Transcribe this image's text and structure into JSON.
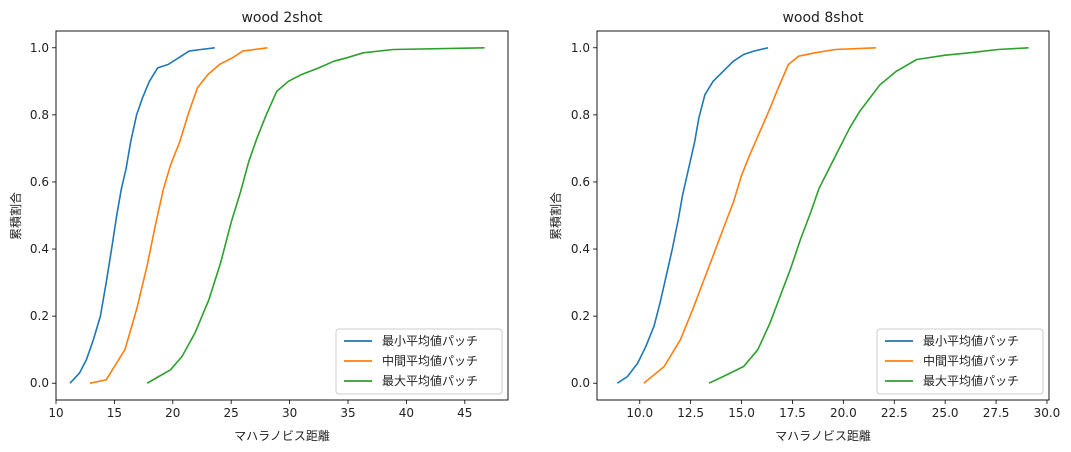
{
  "chart_data": [
    {
      "type": "line",
      "title": "wood 2shot",
      "xlabel": "マハラノビス距離",
      "ylabel": "累積割合",
      "xlim": [
        10.0,
        48.7
      ],
      "ylim": [
        -0.05,
        1.05
      ],
      "xticks": [
        10,
        15,
        20,
        25,
        30,
        35,
        40,
        45
      ],
      "xtick_labels": [
        "10",
        "15",
        "20",
        "25",
        "30",
        "35",
        "40",
        "45"
      ],
      "yticks": [
        0.0,
        0.2,
        0.4,
        0.6,
        0.8,
        1.0
      ],
      "ytick_labels": [
        "0.0",
        "0.2",
        "0.4",
        "0.6",
        "0.8",
        "1.0"
      ],
      "grid": false,
      "legend_position": "bottom-right",
      "series": [
        {
          "name": "最小平均値パッチ",
          "color": "#1f77b4",
          "x": [
            11.2,
            12.0,
            12.6,
            13.2,
            13.8,
            14.3,
            14.8,
            15.2,
            15.6,
            16.0,
            16.4,
            16.9,
            17.4,
            18.0,
            18.7,
            19.6,
            20.5,
            21.4,
            22.4,
            23.6
          ],
          "y": [
            0.0,
            0.03,
            0.07,
            0.13,
            0.2,
            0.3,
            0.41,
            0.5,
            0.58,
            0.64,
            0.72,
            0.8,
            0.85,
            0.9,
            0.94,
            0.95,
            0.97,
            0.99,
            0.995,
            1.0
          ]
        },
        {
          "name": "中間平均値パッチ",
          "color": "#ff7f0e",
          "x": [
            12.9,
            14.3,
            15.0,
            15.9,
            16.9,
            17.8,
            18.5,
            19.2,
            19.8,
            20.6,
            21.3,
            22.1,
            23.0,
            24.0,
            25.1,
            26.0,
            28.1
          ],
          "y": [
            0.0,
            0.01,
            0.05,
            0.1,
            0.22,
            0.35,
            0.47,
            0.58,
            0.65,
            0.72,
            0.8,
            0.88,
            0.92,
            0.95,
            0.97,
            0.99,
            1.0
          ]
        },
        {
          "name": "最大平均値パッチ",
          "color": "#2ca02c",
          "x": [
            17.8,
            18.8,
            19.8,
            20.8,
            21.9,
            23.1,
            24.1,
            25.0,
            25.8,
            26.5,
            27.2,
            28.0,
            28.9,
            29.9,
            31.0,
            32.5,
            33.8,
            34.9,
            36.3,
            38.9,
            46.7
          ],
          "y": [
            0.0,
            0.02,
            0.04,
            0.08,
            0.15,
            0.25,
            0.36,
            0.48,
            0.57,
            0.66,
            0.73,
            0.8,
            0.87,
            0.9,
            0.92,
            0.94,
            0.96,
            0.97,
            0.985,
            0.995,
            1.0
          ]
        }
      ]
    },
    {
      "type": "line",
      "title": "wood 8shot",
      "xlabel": "マハラノビス距離",
      "ylabel": "累積割合",
      "xlim": [
        7.9,
        30.1
      ],
      "ylim": [
        -0.05,
        1.05
      ],
      "xticks": [
        10.0,
        12.5,
        15.0,
        17.5,
        20.0,
        22.5,
        25.0,
        27.5,
        30.0
      ],
      "xtick_labels": [
        "10.0",
        "12.5",
        "15.0",
        "17.5",
        "20.0",
        "22.5",
        "25.0",
        "27.5",
        "30.0"
      ],
      "yticks": [
        0.0,
        0.2,
        0.4,
        0.6,
        0.8,
        1.0
      ],
      "ytick_labels": [
        "0.0",
        "0.2",
        "0.4",
        "0.6",
        "0.8",
        "1.0"
      ],
      "grid": false,
      "legend_position": "bottom-right",
      "series": [
        {
          "name": "最小平均値パッチ",
          "color": "#1f77b4",
          "x": [
            8.9,
            9.4,
            9.9,
            10.3,
            10.7,
            11.0,
            11.3,
            11.6,
            11.9,
            12.1,
            12.4,
            12.7,
            12.9,
            13.2,
            13.6,
            14.1,
            14.6,
            15.1,
            15.6,
            16.3
          ],
          "y": [
            0.0,
            0.02,
            0.06,
            0.11,
            0.17,
            0.24,
            0.32,
            0.4,
            0.49,
            0.56,
            0.64,
            0.72,
            0.79,
            0.86,
            0.9,
            0.93,
            0.96,
            0.98,
            0.99,
            1.0
          ]
        },
        {
          "name": "中間平均値パッチ",
          "color": "#ff7f0e",
          "x": [
            10.2,
            11.2,
            12.0,
            12.6,
            13.1,
            13.6,
            14.1,
            14.6,
            15.0,
            15.4,
            15.9,
            16.4,
            16.8,
            17.3,
            17.8,
            18.6,
            19.6,
            21.6
          ],
          "y": [
            0.0,
            0.05,
            0.13,
            0.22,
            0.3,
            0.38,
            0.46,
            0.54,
            0.62,
            0.68,
            0.75,
            0.82,
            0.88,
            0.95,
            0.975,
            0.985,
            0.995,
            1.0
          ]
        },
        {
          "name": "最大平均値パッチ",
          "color": "#2ca02c",
          "x": [
            13.4,
            14.1,
            15.1,
            15.8,
            16.4,
            16.9,
            17.4,
            17.9,
            18.4,
            18.8,
            19.3,
            19.8,
            20.3,
            20.8,
            21.3,
            21.8,
            22.6,
            23.6,
            25.0,
            26.2,
            27.6,
            29.1
          ],
          "y": [
            0.0,
            0.02,
            0.05,
            0.1,
            0.18,
            0.26,
            0.34,
            0.43,
            0.51,
            0.58,
            0.64,
            0.7,
            0.76,
            0.81,
            0.85,
            0.89,
            0.93,
            0.965,
            0.978,
            0.985,
            0.995,
            1.0
          ]
        }
      ]
    }
  ]
}
